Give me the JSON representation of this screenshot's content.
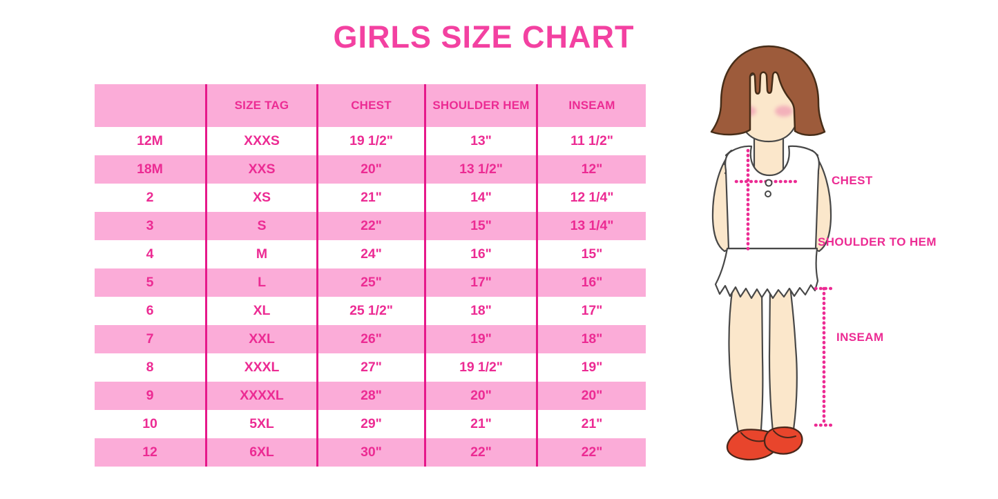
{
  "title": "GIRLS SIZE CHART",
  "chart_data": {
    "type": "table",
    "title": "GIRLS SIZE CHART",
    "columns": [
      "",
      "SIZE TAG",
      "CHEST",
      "SHOULDER HEM",
      "INSEAM"
    ],
    "rows": [
      [
        "12M",
        "XXXS",
        "19 1/2\"",
        "13\"",
        "11 1/2\""
      ],
      [
        "18M",
        "XXS",
        "20\"",
        "13 1/2\"",
        "12\""
      ],
      [
        "2",
        "XS",
        "21\"",
        "14\"",
        "12 1/4\""
      ],
      [
        "3",
        "S",
        "22\"",
        "15\"",
        "13 1/4\""
      ],
      [
        "4",
        "M",
        "24\"",
        "16\"",
        "15\""
      ],
      [
        "5",
        "L",
        "25\"",
        "17\"",
        "16\""
      ],
      [
        "6",
        "XL",
        "25 1/2\"",
        "18\"",
        "17\""
      ],
      [
        "7",
        "XXL",
        "26\"",
        "19\"",
        "18\""
      ],
      [
        "8",
        "XXXL",
        "27\"",
        "19 1/2\"",
        "19\""
      ],
      [
        "9",
        "XXXXL",
        "28\"",
        "20\"",
        "20\""
      ],
      [
        "10",
        "5XL",
        "29\"",
        "21\"",
        "21\""
      ],
      [
        "12",
        "6XL",
        "30\"",
        "22\"",
        "22\""
      ]
    ],
    "row_striping": "white rows alternate with pink rows, header pink"
  },
  "figure": {
    "labels": {
      "chest": "CHEST",
      "shoulder_to_hem": "SHOULDER TO HEM",
      "inseam": "INSEAM"
    }
  },
  "colors": {
    "accent": "#EC2B93",
    "title_pink": "#F341A1",
    "row_pink": "#FBACD8",
    "divider": "#E6188A",
    "hair": "#9D5B3B",
    "hair_outline": "#462D18",
    "skin": "#FBE7CB",
    "outline": "#474747",
    "blush": "#F2A8B8",
    "shoe": "#E8452C",
    "shoe_outline": "#49261A"
  }
}
